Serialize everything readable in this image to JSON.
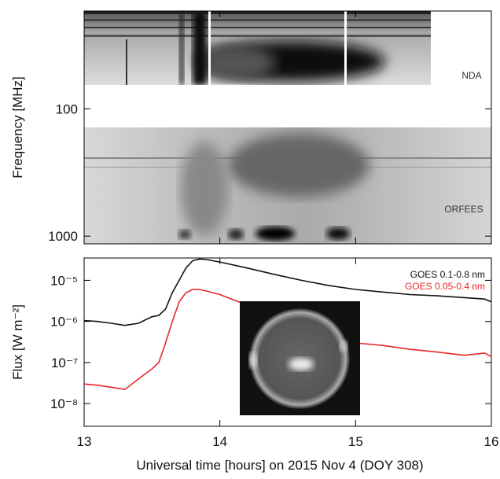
{
  "chart_data": [
    {
      "type": "spectrogram",
      "ylabel": "Frequency [MHz]",
      "log_y": true,
      "ylim": [
        1150,
        17
      ],
      "yticks": [
        100,
        1000
      ],
      "xlim": [
        13,
        16
      ],
      "xticks": [
        13,
        14,
        15,
        16
      ],
      "annotations": [
        "NDA",
        "ORFEES"
      ]
    },
    {
      "type": "line",
      "ylabel": "Flux [W m⁻²]",
      "xlabel": "Universal time [hours] on 2015 Nov 4 (DOY 308)",
      "log_y": true,
      "xlim": [
        13,
        16
      ],
      "xticks": [
        13,
        14,
        15,
        16
      ],
      "ylim": [
        2.8e-09,
        3.5e-05
      ],
      "yticks": [
        {
          "value": 1e-08,
          "label": "10⁻⁸"
        },
        {
          "value": 1e-07,
          "label": "10⁻⁷"
        },
        {
          "value": 1e-06,
          "label": "10⁻⁶"
        },
        {
          "value": 1e-05,
          "label": "10⁻⁵"
        }
      ],
      "legend": "upper right",
      "x": [
        13.0,
        13.1,
        13.2,
        13.3,
        13.4,
        13.5,
        13.55,
        13.6,
        13.65,
        13.7,
        13.75,
        13.8,
        13.85,
        13.9,
        14.0,
        14.2,
        14.4,
        14.6,
        14.8,
        15.0,
        15.2,
        15.4,
        15.6,
        15.8,
        15.95,
        16.0
      ],
      "series": [
        {
          "name": "GOES 0.1-0.8 nm",
          "color": "#111111",
          "values": [
            1.05e-06,
            1e-06,
            9e-07,
            8e-07,
            9e-07,
            1.3e-06,
            1.4e-06,
            2e-06,
            5e-06,
            1e-05,
            2e-05,
            3e-05,
            3.3e-05,
            3.2e-05,
            2.8e-05,
            2e-05,
            1.4e-05,
            1e-05,
            7.5e-06,
            6e-06,
            5.2e-06,
            4.5e-06,
            4.2e-06,
            3.8e-06,
            3.5e-06,
            3e-06
          ]
        },
        {
          "name": "GOES 0.05-0.4 nm",
          "color": "#e8262b",
          "values": [
            3e-08,
            2.8e-08,
            2.5e-08,
            2.2e-08,
            4e-08,
            7e-08,
            1e-07,
            3e-07,
            1e-06,
            3e-06,
            5e-06,
            6e-06,
            6e-06,
            5.5e-06,
            4.5e-06,
            2.5e-06,
            1.2e-06,
            6e-07,
            4e-07,
            3e-07,
            2.6e-07,
            2.1e-07,
            1.8e-07,
            1.5e-07,
            1.7e-07,
            1.4e-07
          ]
        }
      ]
    }
  ]
}
